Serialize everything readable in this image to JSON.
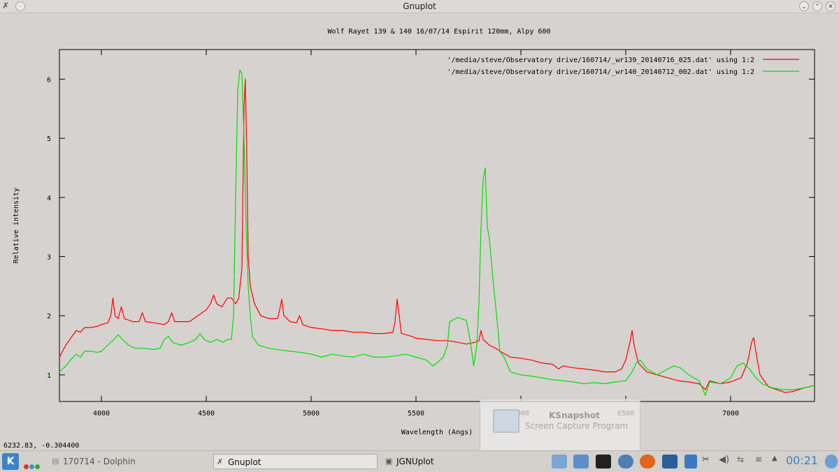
{
  "window": {
    "title": "Gnuplot"
  },
  "status": {
    "coords": "6232.83, -0.304400"
  },
  "chart_data": {
    "type": "line",
    "title": "Wolf Rayet 139 & 140 16/07/14 Espirit 120mm, Alpy 600",
    "xlabel": "Wavelength (Angs)",
    "ylabel": "Relative intensity",
    "xlim": [
      3800,
      7400
    ],
    "ylim": [
      0.55,
      6.5
    ],
    "xticks": [
      4000,
      4500,
      5000,
      5500,
      6000,
      6500,
      7000
    ],
    "yticks": [
      1,
      2,
      3,
      4,
      5,
      6
    ],
    "grid": false,
    "legend_position": "top-right",
    "series": [
      {
        "name": "'/media/steve/Observatory drive/160714/_wr139_20140716_025.dat' using 1:2",
        "color": "#ff0000",
        "points": [
          [
            3800,
            1.3
          ],
          [
            3830,
            1.5
          ],
          [
            3860,
            1.65
          ],
          [
            3880,
            1.75
          ],
          [
            3900,
            1.72
          ],
          [
            3920,
            1.8
          ],
          [
            3950,
            1.8
          ],
          [
            3980,
            1.82
          ],
          [
            4000,
            1.85
          ],
          [
            4030,
            1.88
          ],
          [
            4045,
            2.0
          ],
          [
            4055,
            2.3
          ],
          [
            4065,
            2.0
          ],
          [
            4080,
            1.95
          ],
          [
            4095,
            2.15
          ],
          [
            4110,
            1.95
          ],
          [
            4150,
            1.9
          ],
          [
            4180,
            1.9
          ],
          [
            4195,
            2.05
          ],
          [
            4210,
            1.9
          ],
          [
            4250,
            1.88
          ],
          [
            4300,
            1.85
          ],
          [
            4320,
            1.9
          ],
          [
            4335,
            2.05
          ],
          [
            4350,
            1.9
          ],
          [
            4380,
            1.9
          ],
          [
            4420,
            1.9
          ],
          [
            4460,
            2.0
          ],
          [
            4480,
            2.05
          ],
          [
            4500,
            2.1
          ],
          [
            4520,
            2.2
          ],
          [
            4535,
            2.35
          ],
          [
            4550,
            2.2
          ],
          [
            4575,
            2.15
          ],
          [
            4600,
            2.3
          ],
          [
            4620,
            2.3
          ],
          [
            4640,
            2.2
          ],
          [
            4655,
            2.3
          ],
          [
            4670,
            2.8
          ],
          [
            4680,
            5.5
          ],
          [
            4686,
            6.0
          ],
          [
            4692,
            5.0
          ],
          [
            4700,
            3.0
          ],
          [
            4710,
            2.5
          ],
          [
            4730,
            2.2
          ],
          [
            4760,
            2.0
          ],
          [
            4800,
            1.95
          ],
          [
            4840,
            1.95
          ],
          [
            4850,
            2.1
          ],
          [
            4860,
            2.28
          ],
          [
            4870,
            2.0
          ],
          [
            4900,
            1.9
          ],
          [
            4930,
            1.88
          ],
          [
            4945,
            2.0
          ],
          [
            4960,
            1.85
          ],
          [
            5000,
            1.8
          ],
          [
            5050,
            1.78
          ],
          [
            5100,
            1.75
          ],
          [
            5150,
            1.75
          ],
          [
            5200,
            1.72
          ],
          [
            5250,
            1.72
          ],
          [
            5300,
            1.7
          ],
          [
            5350,
            1.7
          ],
          [
            5390,
            1.72
          ],
          [
            5400,
            1.9
          ],
          [
            5410,
            2.28
          ],
          [
            5420,
            2.0
          ],
          [
            5430,
            1.7
          ],
          [
            5480,
            1.65
          ],
          [
            5500,
            1.62
          ],
          [
            5550,
            1.6
          ],
          [
            5600,
            1.58
          ],
          [
            5650,
            1.58
          ],
          [
            5700,
            1.55
          ],
          [
            5740,
            1.52
          ],
          [
            5780,
            1.55
          ],
          [
            5800,
            1.58
          ],
          [
            5810,
            1.75
          ],
          [
            5820,
            1.6
          ],
          [
            5850,
            1.5
          ],
          [
            5880,
            1.45
          ],
          [
            5900,
            1.4
          ],
          [
            5950,
            1.3
          ],
          [
            6000,
            1.28
          ],
          [
            6050,
            1.25
          ],
          [
            6100,
            1.2
          ],
          [
            6150,
            1.18
          ],
          [
            6180,
            1.1
          ],
          [
            6200,
            1.15
          ],
          [
            6250,
            1.12
          ],
          [
            6300,
            1.1
          ],
          [
            6350,
            1.08
          ],
          [
            6400,
            1.05
          ],
          [
            6450,
            1.05
          ],
          [
            6480,
            1.1
          ],
          [
            6500,
            1.25
          ],
          [
            6520,
            1.55
          ],
          [
            6530,
            1.75
          ],
          [
            6540,
            1.5
          ],
          [
            6560,
            1.2
          ],
          [
            6600,
            1.05
          ],
          [
            6650,
            1.0
          ],
          [
            6700,
            0.95
          ],
          [
            6750,
            0.9
          ],
          [
            6800,
            0.88
          ],
          [
            6850,
            0.85
          ],
          [
            6880,
            0.75
          ],
          [
            6900,
            0.9
          ],
          [
            6950,
            0.85
          ],
          [
            7000,
            0.88
          ],
          [
            7050,
            0.95
          ],
          [
            7080,
            1.2
          ],
          [
            7100,
            1.55
          ],
          [
            7110,
            1.63
          ],
          [
            7120,
            1.4
          ],
          [
            7140,
            1.0
          ],
          [
            7180,
            0.8
          ],
          [
            7220,
            0.75
          ],
          [
            7260,
            0.7
          ],
          [
            7300,
            0.72
          ],
          [
            7350,
            0.78
          ],
          [
            7400,
            0.82
          ]
        ]
      },
      {
        "name": "'/media/steve/Observatory drive/160714/_wr140_20140712_002.dat' using 1:2",
        "color": "#00e000",
        "points": [
          [
            3800,
            1.05
          ],
          [
            3830,
            1.15
          ],
          [
            3860,
            1.28
          ],
          [
            3880,
            1.35
          ],
          [
            3900,
            1.3
          ],
          [
            3920,
            1.4
          ],
          [
            3950,
            1.4
          ],
          [
            3980,
            1.38
          ],
          [
            4000,
            1.4
          ],
          [
            4030,
            1.5
          ],
          [
            4060,
            1.6
          ],
          [
            4080,
            1.68
          ],
          [
            4100,
            1.6
          ],
          [
            4130,
            1.5
          ],
          [
            4160,
            1.45
          ],
          [
            4200,
            1.45
          ],
          [
            4250,
            1.43
          ],
          [
            4280,
            1.45
          ],
          [
            4300,
            1.6
          ],
          [
            4320,
            1.65
          ],
          [
            4340,
            1.55
          ],
          [
            4380,
            1.5
          ],
          [
            4420,
            1.55
          ],
          [
            4450,
            1.6
          ],
          [
            4470,
            1.7
          ],
          [
            4490,
            1.6
          ],
          [
            4520,
            1.55
          ],
          [
            4550,
            1.6
          ],
          [
            4580,
            1.55
          ],
          [
            4600,
            1.6
          ],
          [
            4620,
            1.6
          ],
          [
            4630,
            2.0
          ],
          [
            4640,
            4.0
          ],
          [
            4650,
            5.8
          ],
          [
            4660,
            6.15
          ],
          [
            4670,
            6.1
          ],
          [
            4680,
            5.0
          ],
          [
            4690,
            3.5
          ],
          [
            4700,
            2.5
          ],
          [
            4710,
            2.0
          ],
          [
            4720,
            1.65
          ],
          [
            4750,
            1.5
          ],
          [
            4800,
            1.45
          ],
          [
            4850,
            1.42
          ],
          [
            4900,
            1.4
          ],
          [
            4950,
            1.38
          ],
          [
            5000,
            1.35
          ],
          [
            5050,
            1.3
          ],
          [
            5100,
            1.35
          ],
          [
            5150,
            1.32
          ],
          [
            5200,
            1.3
          ],
          [
            5250,
            1.35
          ],
          [
            5300,
            1.3
          ],
          [
            5350,
            1.3
          ],
          [
            5400,
            1.32
          ],
          [
            5450,
            1.35
          ],
          [
            5500,
            1.3
          ],
          [
            5550,
            1.25
          ],
          [
            5580,
            1.15
          ],
          [
            5600,
            1.2
          ],
          [
            5630,
            1.3
          ],
          [
            5650,
            1.5
          ],
          [
            5660,
            1.9
          ],
          [
            5700,
            1.97
          ],
          [
            5740,
            1.92
          ],
          [
            5760,
            1.55
          ],
          [
            5775,
            1.15
          ],
          [
            5790,
            1.5
          ],
          [
            5800,
            2.2
          ],
          [
            5810,
            3.5
          ],
          [
            5820,
            4.3
          ],
          [
            5830,
            4.5
          ],
          [
            5840,
            3.5
          ],
          [
            5850,
            3.3
          ],
          [
            5870,
            2.5
          ],
          [
            5890,
            1.8
          ],
          [
            5900,
            1.4
          ],
          [
            5920,
            1.3
          ],
          [
            5950,
            1.05
          ],
          [
            6000,
            1.0
          ],
          [
            6050,
            0.98
          ],
          [
            6100,
            0.95
          ],
          [
            6150,
            0.92
          ],
          [
            6200,
            0.9
          ],
          [
            6250,
            0.88
          ],
          [
            6300,
            0.85
          ],
          [
            6350,
            0.87
          ],
          [
            6400,
            0.85
          ],
          [
            6450,
            0.88
          ],
          [
            6500,
            0.9
          ],
          [
            6530,
            1.05
          ],
          [
            6550,
            1.2
          ],
          [
            6570,
            1.25
          ],
          [
            6600,
            1.1
          ],
          [
            6650,
            1.0
          ],
          [
            6700,
            1.1
          ],
          [
            6730,
            1.15
          ],
          [
            6760,
            1.12
          ],
          [
            6800,
            1.0
          ],
          [
            6850,
            0.9
          ],
          [
            6880,
            0.65
          ],
          [
            6900,
            0.88
          ],
          [
            6950,
            0.85
          ],
          [
            7000,
            0.95
          ],
          [
            7030,
            1.15
          ],
          [
            7060,
            1.2
          ],
          [
            7090,
            1.1
          ],
          [
            7120,
            0.95
          ],
          [
            7150,
            0.85
          ],
          [
            7200,
            0.78
          ],
          [
            7250,
            0.75
          ],
          [
            7300,
            0.75
          ],
          [
            7350,
            0.78
          ],
          [
            7400,
            0.82
          ]
        ]
      }
    ]
  },
  "ksnapshot": {
    "name": "KSnapshot",
    "desc": "Screen Capture Program"
  },
  "taskbar": {
    "tasks": [
      {
        "label": "170714 - Dolphin"
      },
      {
        "label": "Gnuplot"
      },
      {
        "label": "JGNUplot"
      }
    ],
    "clock": "00:21"
  }
}
